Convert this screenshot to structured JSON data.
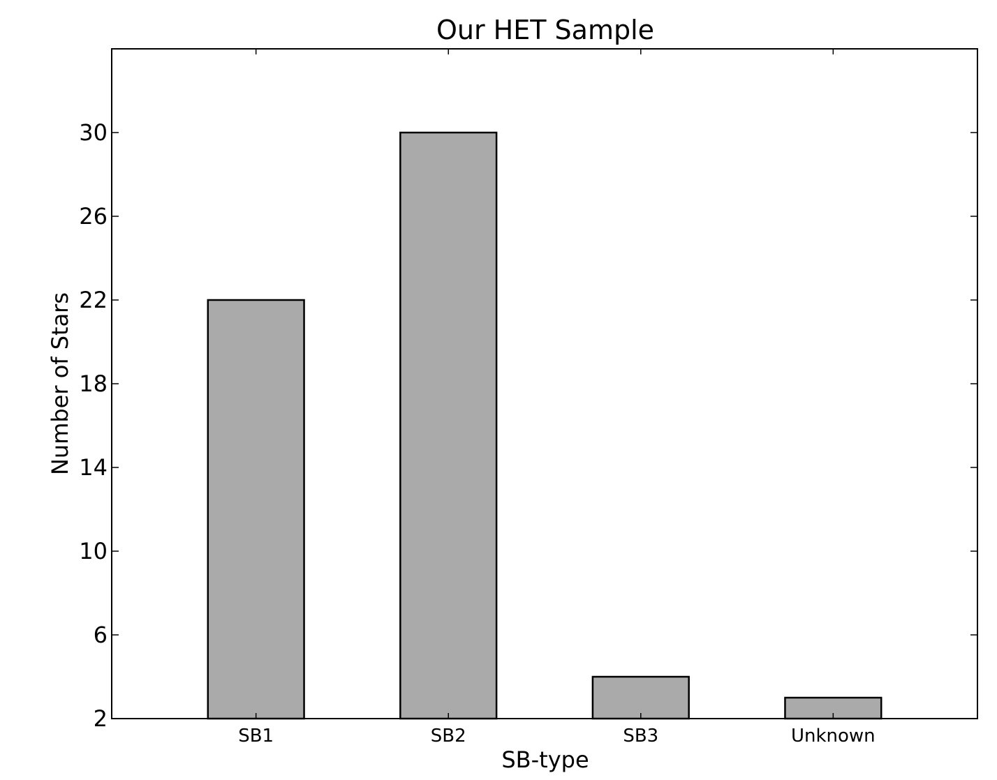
{
  "chart_data": {
    "type": "bar",
    "title": "Our HET Sample",
    "xlabel": "SB-type",
    "ylabel": "Number of Stars",
    "categories": [
      "SB1",
      "SB2",
      "SB3",
      "Unknown"
    ],
    "values": [
      22,
      30,
      4,
      3
    ],
    "yticks": [
      2,
      6,
      10,
      14,
      18,
      22,
      26,
      30
    ],
    "ylim": [
      2,
      34
    ],
    "bar_color": "#aaaaaa",
    "edge_color": "#000000",
    "grid": false
  }
}
